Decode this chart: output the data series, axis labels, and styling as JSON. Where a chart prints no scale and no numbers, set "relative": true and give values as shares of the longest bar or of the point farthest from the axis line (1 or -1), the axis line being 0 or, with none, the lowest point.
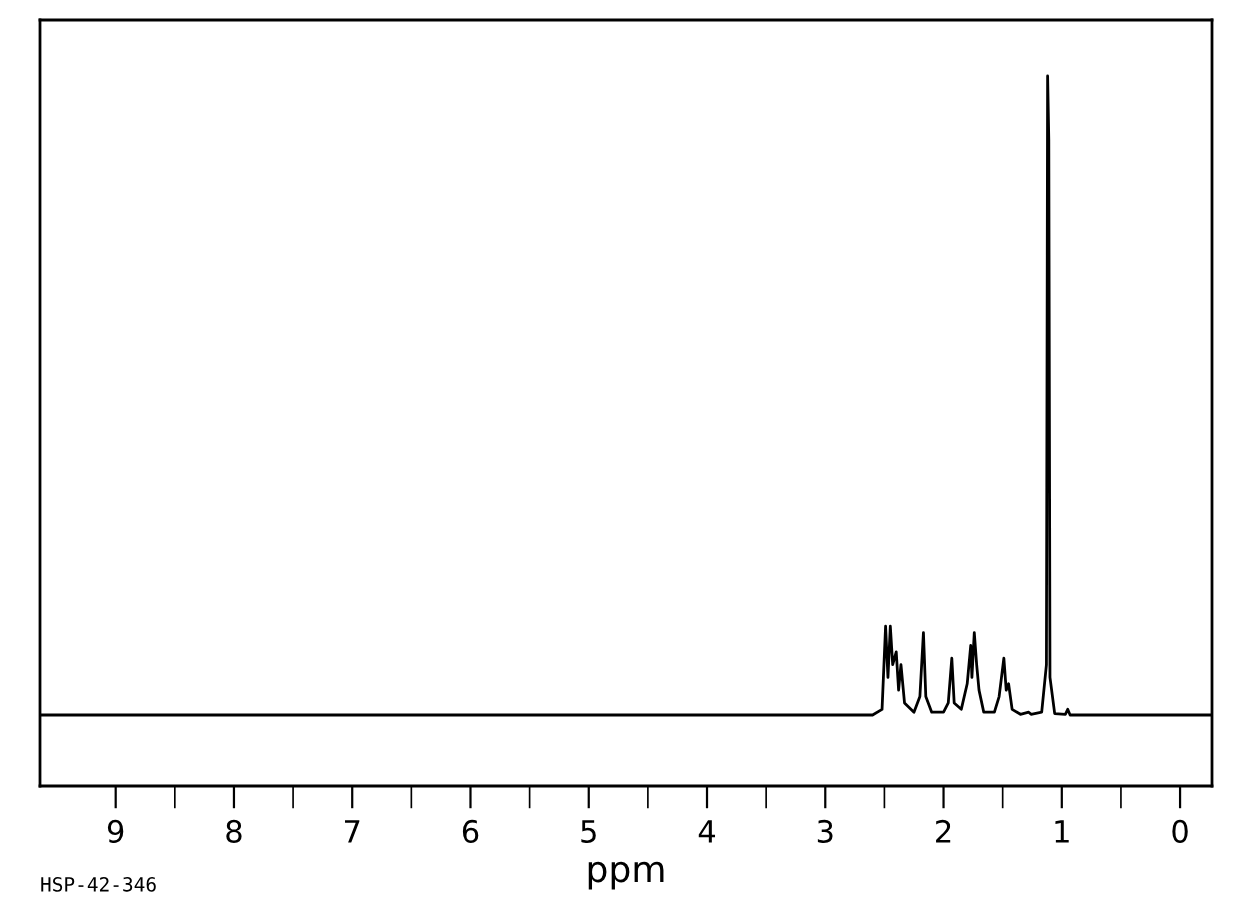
{
  "chart_data": {
    "type": "line",
    "relative": true,
    "xlabel": "ppm",
    "annotations": [
      "HSP-42-346"
    ],
    "x": [
      9.64,
      2.6,
      2.52,
      2.49,
      2.47,
      2.45,
      2.43,
      2.4,
      2.38,
      2.36,
      2.33,
      2.25,
      2.2,
      2.17,
      2.15,
      2.1,
      2.0,
      1.96,
      1.93,
      1.91,
      1.85,
      1.8,
      1.77,
      1.76,
      1.74,
      1.72,
      1.7,
      1.66,
      1.57,
      1.53,
      1.51,
      1.49,
      1.47,
      1.45,
      1.42,
      1.35,
      1.28,
      1.26,
      1.17,
      1.13,
      1.12,
      1.11,
      1.1,
      1.06,
      0.97,
      0.95,
      0.93,
      -0.27
    ],
    "series": [
      {
        "color": "#000000",
        "values": [
          0.1,
          0.1,
          0.108,
          0.225,
          0.153,
          0.225,
          0.171,
          0.189,
          0.135,
          0.171,
          0.117,
          0.104,
          0.126,
          0.216,
          0.126,
          0.104,
          0.104,
          0.117,
          0.18,
          0.117,
          0.108,
          0.144,
          0.198,
          0.153,
          0.216,
          0.171,
          0.135,
          0.104,
          0.104,
          0.126,
          0.153,
          0.18,
          0.135,
          0.144,
          0.108,
          0.101,
          0.104,
          0.101,
          0.104,
          0.171,
          1.0,
          0.91,
          0.153,
          0.102,
          0.101,
          0.108,
          0.1,
          0.1
        ]
      }
    ],
    "xlim": [
      9.64,
      -0.27
    ],
    "xticks": [
      9,
      {
        "value": 8.5,
        "label": null
      },
      8,
      {
        "value": 7.5,
        "label": null
      },
      7,
      {
        "value": 6.5,
        "label": null
      },
      6,
      {
        "value": 5.5,
        "label": null
      },
      5,
      {
        "value": 4.5,
        "label": null
      },
      4,
      {
        "value": 3.5,
        "label": null
      },
      3,
      {
        "value": 2.5,
        "label": null
      },
      2,
      {
        "value": 1.5,
        "label": null
      },
      1,
      {
        "value": 0.5,
        "label": null
      },
      0
    ],
    "grid": false,
    "legend": false,
    "marker": "none",
    "line_style": "solid"
  }
}
